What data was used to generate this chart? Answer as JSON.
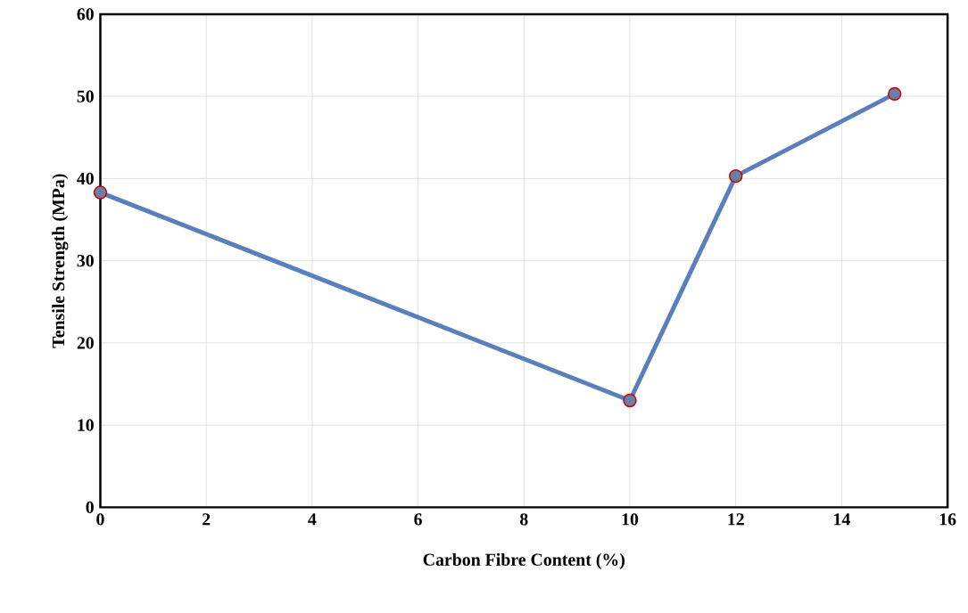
{
  "chart_data": {
    "type": "line",
    "xlabel": "Carbon Fibre Content (%)",
    "ylabel": "Tensile Strength (MPa)",
    "x": [
      0,
      10,
      12,
      15
    ],
    "series": [
      {
        "color": "#5b7fbd",
        "values": [
          38.3,
          13,
          40.3,
          50.3
        ]
      }
    ],
    "xlim": [
      0,
      16
    ],
    "ylim": [
      0,
      60
    ],
    "xticks": [
      0,
      2,
      4,
      6,
      8,
      10,
      12,
      14,
      16
    ],
    "yticks": [
      0,
      10,
      20,
      30,
      40,
      50,
      60
    ],
    "grid": true,
    "marker": "circle",
    "line_style": "solid"
  }
}
